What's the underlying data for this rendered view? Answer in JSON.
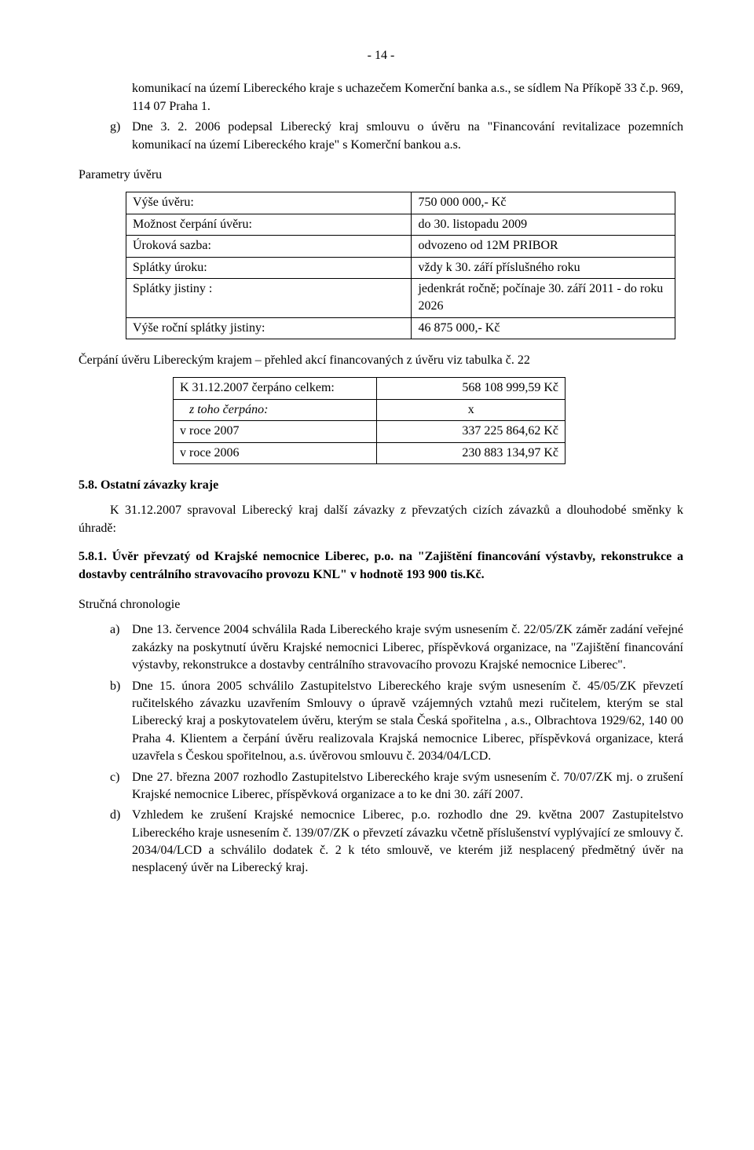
{
  "page_number": "- 14 -",
  "lead": {
    "item_f_text": "komunikací na území Libereckého kraje s uchazečem Komerční banka a.s., se sídlem Na Příkopě 33 č.p. 969, 114 07  Praha 1.",
    "item_g_marker": "g)",
    "item_g_text": "Dne 3. 2. 2006 podepsal Liberecký kraj smlouvu o úvěru na \"Financování revitalizace pozemních komunikací na území Libereckého kraje\" s Komerční bankou a.s."
  },
  "params_title": "Parametry úvěru",
  "params_table": {
    "rows": [
      {
        "label": "Výše úvěru:",
        "value": "750 000 000,- Kč"
      },
      {
        "label": "Možnost čerpání úvěru:",
        "value": "do 30. listopadu 2009"
      },
      {
        "label": "Úroková sazba:",
        "value": "odvozeno od 12M PRIBOR"
      },
      {
        "label": "Splátky úroku:",
        "value": "vždy k 30. září příslušného roku"
      },
      {
        "label": "Splátky jistiny :",
        "value": "jedenkrát ročně; počínaje 30. září 2011 - do roku 2026"
      },
      {
        "label": "Výše roční splátky jistiny:",
        "value": "46 875 000,- Kč"
      }
    ]
  },
  "cerpani_para": "Čerpání úvěru Libereckým krajem – přehled akcí financovaných z úvěru viz  tabulka č. 22",
  "inner_table": {
    "rows": [
      {
        "label": "K 31.12.2007 čerpáno celkem:",
        "value": "568 108 999,59 Kč",
        "italic": false,
        "align": "left"
      },
      {
        "label": "z toho čerpáno:",
        "value": "x",
        "italic": true,
        "align": "center"
      },
      {
        "label": "v roce 2007",
        "value": "337 225 864,62 Kč",
        "italic": false,
        "align": "left"
      },
      {
        "label": "v roce 2006",
        "value": "230 883 134,97 Kč",
        "italic": false,
        "align": "left"
      }
    ]
  },
  "section_58": "5.8. Ostatní závazky kraje",
  "para_58": "K 31.12.2007 spravoval Liberecký kraj další závazky z převzatých cizích závazků a dlouhodobé směnky k úhradě:",
  "heading_581": "5.8.1. Úvěr převzatý od Krajské nemocnice Liberec, p.o. na \"Zajištění financování výstavby, rekonstrukce a dostavby centrálního stravovacího provozu KNL\" v  hodnotě 193 900 tis.Kč.",
  "chron_title": "Stručná chronologie",
  "chron": {
    "items": [
      {
        "marker": "a)",
        "text": "Dne 13. července 2004 schválila Rada Libereckého kraje svým usnesením č. 22/05/ZK záměr zadání veřejné zakázky na poskytnutí úvěru Krajské nemocnici Liberec, příspěvková organizace, na \"Zajištění financování  výstavby, rekonstrukce a dostavby centrálního stravovacího provozu Krajské nemocnice Liberec\"."
      },
      {
        "marker": "b)",
        "text": "Dne 15. února 2005 schválilo Zastupitelstvo Libereckého kraje svým usnesením č. 45/05/ZK převzetí ručitelského závazku uzavřením Smlouvy o úpravě vzájemných vztahů mezi ručitelem, kterým se stal Liberecký kraj a poskytovatelem úvěru, kterým se stala Česká spořitelna , a.s., Olbrachtova 1929/62, 140 00 Praha 4. Klientem a čerpání úvěru realizovala Krajská nemocnice Liberec, příspěvková organizace, která uzavřela s Českou spořitelnou, a.s. úvěrovou smlouvu č. 2034/04/LCD."
      },
      {
        "marker": "c)",
        "text": "Dne 27. března 2007 rozhodlo Zastupitelstvo Libereckého kraje svým usnesením č. 70/07/ZK mj. o zrušení Krajské nemocnice Liberec, příspěvková organizace a to ke dni 30. září 2007."
      },
      {
        "marker": "d)",
        "text": "Vzhledem ke zrušení Krajské nemocnice Liberec, p.o. rozhodlo dne 29. května 2007 Zastupitelstvo Libereckého kraje usnesením č. 139/07/ZK o převzetí závazku včetně příslušenství vyplývající ze smlouvy č. 2034/04/LCD a schválilo dodatek č. 2 k této smlouvě, ve kterém již nesplacený předmětný úvěr na nesplacený úvěr na Liberecký kraj."
      }
    ]
  }
}
